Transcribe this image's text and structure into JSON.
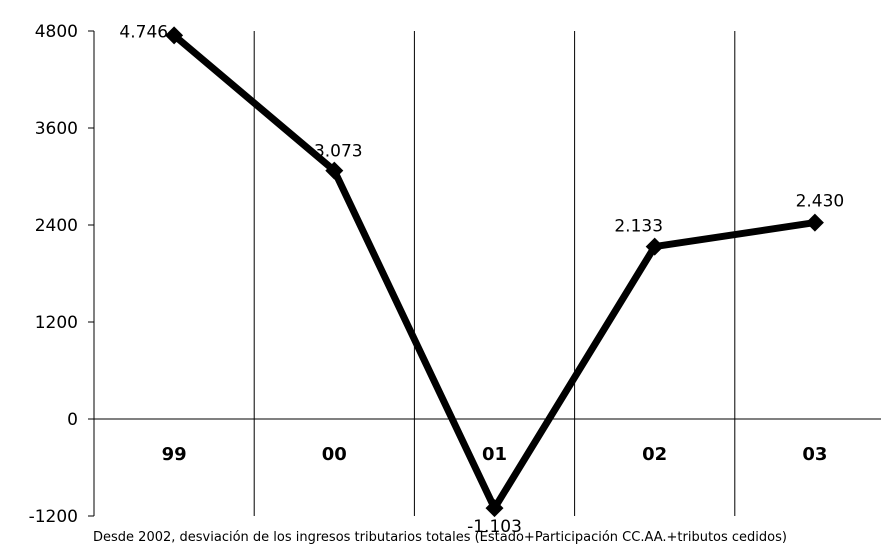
{
  "chart_data": {
    "type": "line",
    "categories": [
      "99",
      "00",
      "01",
      "02",
      "03"
    ],
    "values": [
      4746,
      3073,
      -1103,
      2133,
      2430
    ],
    "data_labels": [
      "4.746",
      "3.073",
      "-1.103",
      "2.133",
      "2.430"
    ],
    "y_ticks": [
      4800,
      3600,
      2400,
      1200,
      0,
      -1200
    ],
    "y_tick_labels": [
      "4800",
      "3600",
      "2400",
      "1200",
      "0",
      "-1200"
    ],
    "ylim": [
      -1200,
      4800
    ],
    "grid": "vertical category separators",
    "legend": "none",
    "line_color": "#000000",
    "marker": "diamond"
  },
  "footnote": "Desde 2002, desviación de los ingresos tributarios totales (Estado+Participación CC.AA.+tributos cedidos)"
}
